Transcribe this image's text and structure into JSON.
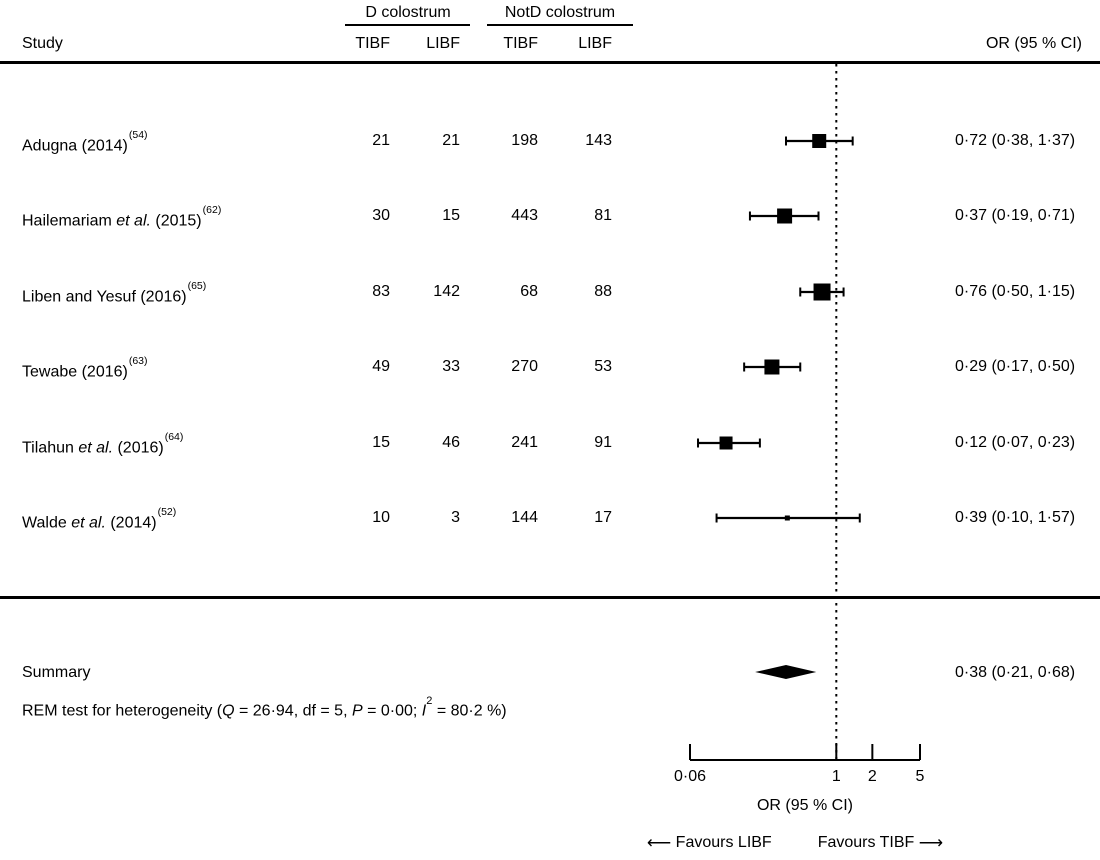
{
  "header": {
    "study": "Study",
    "group_d": "D colostrum",
    "group_notd": "NotD colostrum",
    "tibf": "TIBF",
    "libf": "LIBF",
    "or_ci": "OR (95 % CI)"
  },
  "chart_data": {
    "type": "forest",
    "x_scale": "log",
    "xlim": [
      0.06,
      5
    ],
    "reference_line": 1,
    "xlabel": "OR (95 % CI)",
    "x_ticks": [
      {
        "value": 0.06,
        "label": "0·06"
      },
      {
        "value": 1,
        "label": "1"
      },
      {
        "value": 2,
        "label": "2"
      },
      {
        "value": 5,
        "label": "5"
      }
    ],
    "count_columns": [
      "D colostrum TIBF",
      "D colostrum LIBF",
      "NotD colostrum TIBF",
      "NotD colostrum LIBF"
    ],
    "studies": [
      {
        "label_pre": "Adugna (2014)",
        "label_italic": "",
        "label_post": "",
        "citation": "(54)",
        "counts": [
          21,
          21,
          198,
          143
        ],
        "or": 0.72,
        "ci_low": 0.38,
        "ci_high": 1.37,
        "or_text": "0·72 (0·38, 1·37)",
        "marker": 14
      },
      {
        "label_pre": "Hailemariam ",
        "label_italic": "et al.",
        "label_post": " (2015)",
        "citation": "(62)",
        "counts": [
          30,
          15,
          443,
          81
        ],
        "or": 0.37,
        "ci_low": 0.19,
        "ci_high": 0.71,
        "or_text": "0·37 (0·19, 0·71)",
        "marker": 15
      },
      {
        "label_pre": "Liben and Yesuf (2016)",
        "label_italic": "",
        "label_post": "",
        "citation": "(65)",
        "counts": [
          83,
          142,
          68,
          88
        ],
        "or": 0.76,
        "ci_low": 0.5,
        "ci_high": 1.15,
        "or_text": "0·76 (0·50, 1·15)",
        "marker": 17
      },
      {
        "label_pre": "Tewabe (2016)",
        "label_italic": "",
        "label_post": "",
        "citation": "(63)",
        "counts": [
          49,
          33,
          270,
          53
        ],
        "or": 0.29,
        "ci_low": 0.17,
        "ci_high": 0.5,
        "or_text": "0·29 (0·17, 0·50)",
        "marker": 15
      },
      {
        "label_pre": "Tilahun ",
        "label_italic": "et al.",
        "label_post": " (2016)",
        "citation": "(64)",
        "counts": [
          15,
          46,
          241,
          91
        ],
        "or": 0.12,
        "ci_low": 0.07,
        "ci_high": 0.23,
        "or_text": "0·12 (0·07, 0·23)",
        "marker": 13
      },
      {
        "label_pre": "Walde ",
        "label_italic": "et al.",
        "label_post": " (2014)",
        "citation": "(52)",
        "counts": [
          10,
          3,
          144,
          17
        ],
        "or": 0.39,
        "ci_low": 0.1,
        "ci_high": 1.57,
        "or_text": "0·39 (0·10, 1·57)",
        "marker": 5
      }
    ],
    "summary": {
      "label": "Summary",
      "or": 0.38,
      "ci_low": 0.21,
      "ci_high": 0.68,
      "or_text": "0·38 (0·21, 0·68)"
    },
    "heterogeneity": {
      "prefix": "REM test for heterogeneity (",
      "q_label": "Q",
      "q_text": " = 26·94, df = 5, ",
      "p_label": "P",
      "p_text": " = 0·00; ",
      "i_label": "I",
      "i_sup": "2",
      "i_text": " = 80·2 %)",
      "Q": 26.94,
      "df": 5,
      "P": 0.0,
      "I2_percent": 80.2
    },
    "footer": {
      "arrow_left": "⟵",
      "favours_left": "Favours LIBF",
      "favours_right": "Favours TIBF",
      "arrow_right": "⟶"
    }
  }
}
